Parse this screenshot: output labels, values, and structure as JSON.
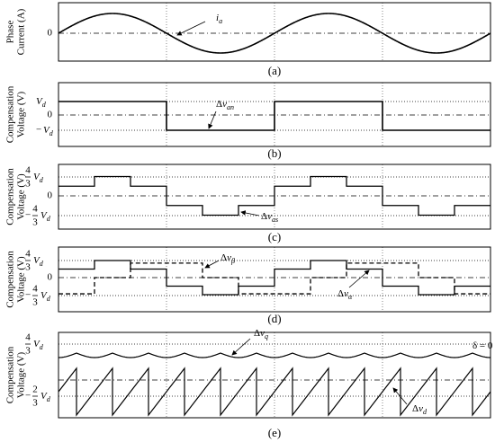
{
  "panels": [
    {
      "label": "(a)",
      "y_axis_label": [
        "Phase",
        "Current (A)"
      ],
      "ticks": [
        {
          "text": "0"
        }
      ],
      "annotations": [
        {
          "symbol": "i",
          "sub": "a"
        }
      ]
    },
    {
      "label": "(b)",
      "y_axis_label": [
        "Compensation",
        "Voltage (V)"
      ],
      "ticks": [
        {
          "base": "V",
          "sub": "d"
        },
        {
          "text": "0"
        },
        {
          "sign": "−",
          "base": "V",
          "sub": "d"
        }
      ],
      "annotations": [
        {
          "prefix": "Δ",
          "symbol": "v",
          "sub": "an"
        }
      ]
    },
    {
      "label": "(c)",
      "y_axis_label": [
        "Compensation",
        "Voltage (V)"
      ],
      "ticks": [
        {
          "num": "4",
          "den": "3",
          "base": "V",
          "sub": "d"
        },
        {
          "text": "0"
        },
        {
          "sign": "−",
          "num": "4",
          "den": "3",
          "base": "V",
          "sub": "d"
        }
      ],
      "annotations": [
        {
          "prefix": "Δ",
          "symbol": "v",
          "sub": "as"
        }
      ]
    },
    {
      "label": "(d)",
      "y_axis_label": [
        "Compensation",
        "Voltage (V)"
      ],
      "ticks": [
        {
          "num": "4",
          "den": "3",
          "base": "V",
          "sub": "d"
        },
        {
          "text": "0"
        },
        {
          "sign": "−",
          "num": "4",
          "den": "3",
          "base": "V",
          "sub": "d"
        }
      ],
      "annotations": [
        {
          "prefix": "Δ",
          "symbol": "v",
          "sub": "β"
        },
        {
          "prefix": "Δ",
          "symbol": "v",
          "sub": "α"
        }
      ]
    },
    {
      "label": "(e)",
      "y_axis_label": [
        "Compensation",
        "Voltage (V)"
      ],
      "ticks": [
        {
          "num": "4",
          "den": "3",
          "base": "V",
          "sub": "d"
        },
        {
          "sign": "−",
          "num": "2",
          "den": "3",
          "base": "V",
          "sub": "d"
        }
      ],
      "annotations": [
        {
          "prefix": "Δ",
          "symbol": "v",
          "sub": "q"
        },
        {
          "prefix": "Δ",
          "symbol": "v",
          "sub": "d"
        },
        {
          "text": "δ = 0"
        }
      ]
    }
  ]
}
